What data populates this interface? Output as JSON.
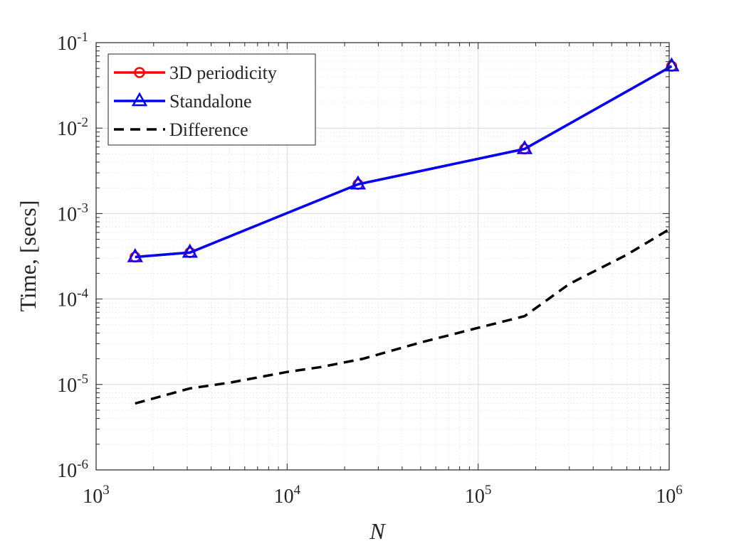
{
  "chart_data": {
    "type": "line",
    "xscale": "log",
    "yscale": "log",
    "xlim": [
      1000,
      1000000
    ],
    "ylim": [
      1e-06,
      0.1
    ],
    "xlabel": "N",
    "ylabel": "Time, [secs]",
    "grid": true,
    "legend_position": "top-left",
    "x_ticks": [
      {
        "base": "10",
        "exp": "3",
        "value": 1000
      },
      {
        "base": "10",
        "exp": "4",
        "value": 10000
      },
      {
        "base": "10",
        "exp": "5",
        "value": 100000
      },
      {
        "base": "10",
        "exp": "6",
        "value": 1000000
      }
    ],
    "y_ticks": [
      {
        "base": "10",
        "exp": "-6",
        "value": 1e-06
      },
      {
        "base": "10",
        "exp": "-5",
        "value": 1e-05
      },
      {
        "base": "10",
        "exp": "-4",
        "value": 0.0001
      },
      {
        "base": "10",
        "exp": "-3",
        "value": 0.001
      },
      {
        "base": "10",
        "exp": "-2",
        "value": 0.01
      },
      {
        "base": "10",
        "exp": "-1",
        "value": 0.1
      }
    ],
    "series": [
      {
        "name": "3D periodicity",
        "color": "#ff0000",
        "marker": "circle",
        "dash": "solid",
        "x": [
          1600,
          3100,
          23500,
          175000,
          1030000
        ],
        "y": [
          0.00031,
          0.00035,
          0.0022,
          0.0057,
          0.053
        ]
      },
      {
        "name": "Standalone",
        "color": "#0000ff",
        "marker": "triangle",
        "dash": "solid",
        "x": [
          1600,
          3100,
          23500,
          175000,
          1030000
        ],
        "y": [
          0.00031,
          0.00035,
          0.0022,
          0.0057,
          0.053
        ]
      },
      {
        "name": "Difference",
        "color": "#000000",
        "marker": "none",
        "dash": "dashed",
        "x": [
          1600,
          3100,
          5000,
          10000,
          15000,
          25000,
          50000,
          100000,
          175000,
          300000,
          600000,
          1030000
        ],
        "y": [
          6e-06,
          9e-06,
          1.05e-05,
          1.4e-05,
          1.6e-05,
          2e-05,
          3.1e-05,
          4.6e-05,
          6.3e-05,
          0.00015,
          0.00033,
          0.00068
        ]
      }
    ]
  }
}
